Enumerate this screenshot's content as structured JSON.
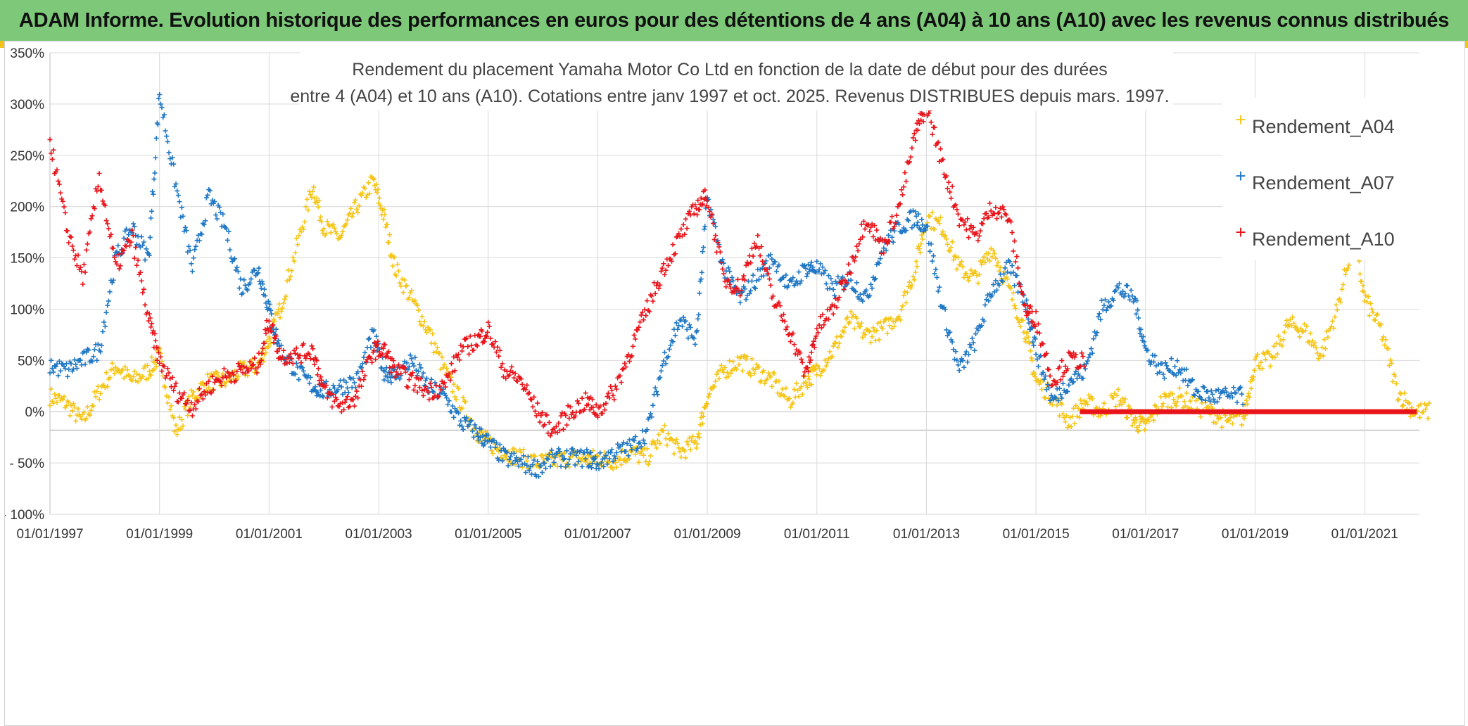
{
  "header": {
    "banner": "ADAM Informe. Evolution historique des performances en euros pour des détentions de 4 ans (A04) à 10 ans (A10) avec les revenus connus distribués"
  },
  "colors": {
    "banner_bg": "#7dc879",
    "A04": "#f5c518",
    "A07": "#1f77c4",
    "A10": "#e8141a",
    "grid": "#d9d9d9",
    "zero_line": "#bfbfbf"
  },
  "chart_data": {
    "type": "scatter",
    "title_line1": "Rendement du placement Yamaha Motor Co Ltd en fonction de la date de début pour des durées",
    "title_line2": "entre 4 (A04) et 10 ans (A10). Cotations entre janv 1997 et oct. 2025. Revenus DISTRIBUES depuis mars. 1997.",
    "xlabel": "",
    "ylabel": "",
    "xlim": [
      1997.0,
      2022.0
    ],
    "ylim": [
      -100,
      350
    ],
    "x_tick_labels": [
      "01/01/1997",
      "01/01/1999",
      "01/01/2001",
      "01/01/2003",
      "01/01/2005",
      "01/01/2007",
      "01/01/2009",
      "01/01/2011",
      "01/01/2013",
      "01/01/2015",
      "01/01/2017",
      "01/01/2019",
      "01/01/2021"
    ],
    "x_tick_values": [
      1997,
      1999,
      2001,
      2003,
      2005,
      2007,
      2009,
      2011,
      2013,
      2015,
      2017,
      2019,
      2021
    ],
    "y_tick_labels": [
      "350%",
      "300%",
      "250%",
      "200%",
      "150%",
      "100%",
      "50%",
      "0%",
      "- 50%",
      "- 100%"
    ],
    "y_tick_values": [
      350,
      300,
      250,
      200,
      150,
      100,
      50,
      0,
      -50,
      -100
    ],
    "legend": [
      "Rendement_A04",
      "Rendement_A07",
      "Rendement_A10"
    ],
    "legend_position": "top-right",
    "marker": "+",
    "series": [
      {
        "name": "Rendement_A04",
        "color": "#f5c518",
        "x": [
          1997.0,
          1997.3,
          1997.6,
          1997.9,
          1998.2,
          1998.5,
          1998.8,
          1999.0,
          1999.3,
          1999.6,
          1999.9,
          2000.2,
          2000.5,
          2000.8,
          2001.0,
          2001.2,
          2001.5,
          2001.8,
          2002.0,
          2002.3,
          2002.6,
          2002.9,
          2003.1,
          2003.3,
          2003.6,
          2003.9,
          2004.2,
          2004.5,
          2004.8,
          2005.0,
          2005.3,
          2005.6,
          2005.9,
          2006.2,
          2006.5,
          2006.8,
          2007.0,
          2007.3,
          2007.6,
          2007.9,
          2008.2,
          2008.5,
          2008.8,
          2009.0,
          2009.3,
          2009.6,
          2009.9,
          2010.2,
          2010.5,
          2010.8,
          2011.0,
          2011.3,
          2011.6,
          2011.9,
          2012.2,
          2012.5,
          2012.8,
          2013.0,
          2013.3,
          2013.6,
          2013.9,
          2014.2,
          2014.5,
          2014.8,
          2015.0,
          2015.3,
          2015.6,
          2015.9,
          2016.2,
          2016.5,
          2016.8,
          2017.0,
          2017.3,
          2017.6,
          2017.9,
          2018.2,
          2018.5,
          2018.8,
          2019.0,
          2019.3,
          2019.6,
          2019.9,
          2020.2,
          2020.5,
          2020.8,
          2021.0,
          2021.3,
          2021.6,
          2021.9
        ],
        "values": [
          15,
          8,
          -10,
          20,
          45,
          30,
          40,
          55,
          -20,
          15,
          30,
          30,
          40,
          45,
          70,
          100,
          160,
          220,
          180,
          170,
          200,
          225,
          190,
          140,
          110,
          80,
          40,
          10,
          -20,
          -30,
          -40,
          -45,
          -50,
          -48,
          -45,
          -47,
          -45,
          -48,
          -40,
          -45,
          -20,
          -40,
          -30,
          15,
          40,
          50,
          40,
          30,
          10,
          30,
          40,
          60,
          90,
          75,
          80,
          95,
          140,
          190,
          180,
          140,
          130,
          160,
          120,
          80,
          30,
          15,
          -10,
          10,
          0,
          15,
          -10,
          -15,
          10,
          15,
          5,
          0,
          -10,
          -5,
          50,
          50,
          85,
          80,
          55,
          100,
          170,
          110,
          80,
          20,
          0
        ]
      },
      {
        "name": "Rendement_A07",
        "color": "#1f77c4",
        "x": [
          1997.0,
          1997.3,
          1997.6,
          1997.9,
          1998.2,
          1998.5,
          1998.8,
          1999.0,
          1999.3,
          1999.6,
          1999.9,
          2000.2,
          2000.5,
          2000.8,
          2001.0,
          2001.2,
          2001.5,
          2001.8,
          2002.0,
          2002.3,
          2002.6,
          2002.9,
          2003.1,
          2003.3,
          2003.6,
          2003.9,
          2004.2,
          2004.5,
          2004.8,
          2005.0,
          2005.3,
          2005.6,
          2005.9,
          2006.2,
          2006.5,
          2006.8,
          2007.0,
          2007.3,
          2007.6,
          2007.9,
          2008.2,
          2008.5,
          2008.8,
          2009.0,
          2009.3,
          2009.6,
          2009.9,
          2010.2,
          2010.5,
          2010.8,
          2011.0,
          2011.3,
          2011.6,
          2011.9,
          2012.2,
          2012.5,
          2012.8,
          2013.0,
          2013.3,
          2013.6,
          2013.9,
          2014.2,
          2014.5,
          2014.8,
          2015.0,
          2015.3,
          2015.6,
          2015.9,
          2016.2,
          2016.5,
          2016.8,
          2017.0,
          2017.3,
          2017.6,
          2017.9,
          2018.2,
          2018.5
        ],
        "values": [
          45,
          40,
          50,
          60,
          150,
          180,
          150,
          310,
          220,
          140,
          210,
          180,
          120,
          140,
          100,
          60,
          40,
          25,
          20,
          25,
          30,
          75,
          40,
          35,
          50,
          25,
          15,
          -10,
          -20,
          -30,
          -45,
          -50,
          -55,
          -45,
          -45,
          -45,
          -50,
          -40,
          -35,
          -20,
          50,
          90,
          70,
          210,
          140,
          110,
          130,
          150,
          120,
          140,
          140,
          120,
          130,
          110,
          160,
          180,
          190,
          180,
          100,
          40,
          70,
          120,
          140,
          110,
          60,
          10,
          30,
          40,
          100,
          120,
          110,
          60,
          40,
          45,
          20,
          15,
          15
        ]
      },
      {
        "name": "Rendement_A10",
        "color": "#e8141a",
        "x": [
          1997.0,
          1997.3,
          1997.6,
          1997.9,
          1998.2,
          1998.5,
          1998.8,
          1999.0,
          1999.3,
          1999.6,
          1999.9,
          2000.2,
          2000.5,
          2000.8,
          2001.0,
          2001.2,
          2001.5,
          2001.8,
          2002.0,
          2002.3,
          2002.6,
          2002.9,
          2003.1,
          2003.3,
          2003.6,
          2003.9,
          2004.2,
          2004.5,
          2004.8,
          2005.0,
          2005.3,
          2005.6,
          2005.9,
          2006.2,
          2006.5,
          2006.8,
          2007.0,
          2007.3,
          2007.6,
          2007.9,
          2008.2,
          2008.5,
          2008.8,
          2009.0,
          2009.3,
          2009.6,
          2009.9,
          2010.2,
          2010.5,
          2010.8,
          2011.0,
          2011.3,
          2011.6,
          2011.9,
          2012.2,
          2012.5,
          2012.8,
          2013.0,
          2013.3,
          2013.6,
          2013.9,
          2014.2,
          2014.5,
          2014.8,
          2015.0,
          2015.3,
          2015.6
        ],
        "values": [
          265,
          180,
          130,
          230,
          140,
          170,
          90,
          50,
          20,
          5,
          25,
          35,
          40,
          45,
          90,
          55,
          55,
          60,
          20,
          5,
          15,
          60,
          60,
          40,
          30,
          20,
          25,
          60,
          70,
          80,
          40,
          30,
          0,
          -20,
          0,
          10,
          0,
          20,
          60,
          100,
          140,
          170,
          200,
          210,
          130,
          120,
          170,
          110,
          80,
          35,
          80,
          100,
          140,
          190,
          160,
          200,
          270,
          300,
          240,
          190,
          170,
          200,
          190,
          100,
          90,
          30,
          50
        ]
      }
    ],
    "flat_segment": {
      "name": "Rendement_A10",
      "value": 0,
      "x_start": 2015.8,
      "x_end": 2021.95
    }
  }
}
